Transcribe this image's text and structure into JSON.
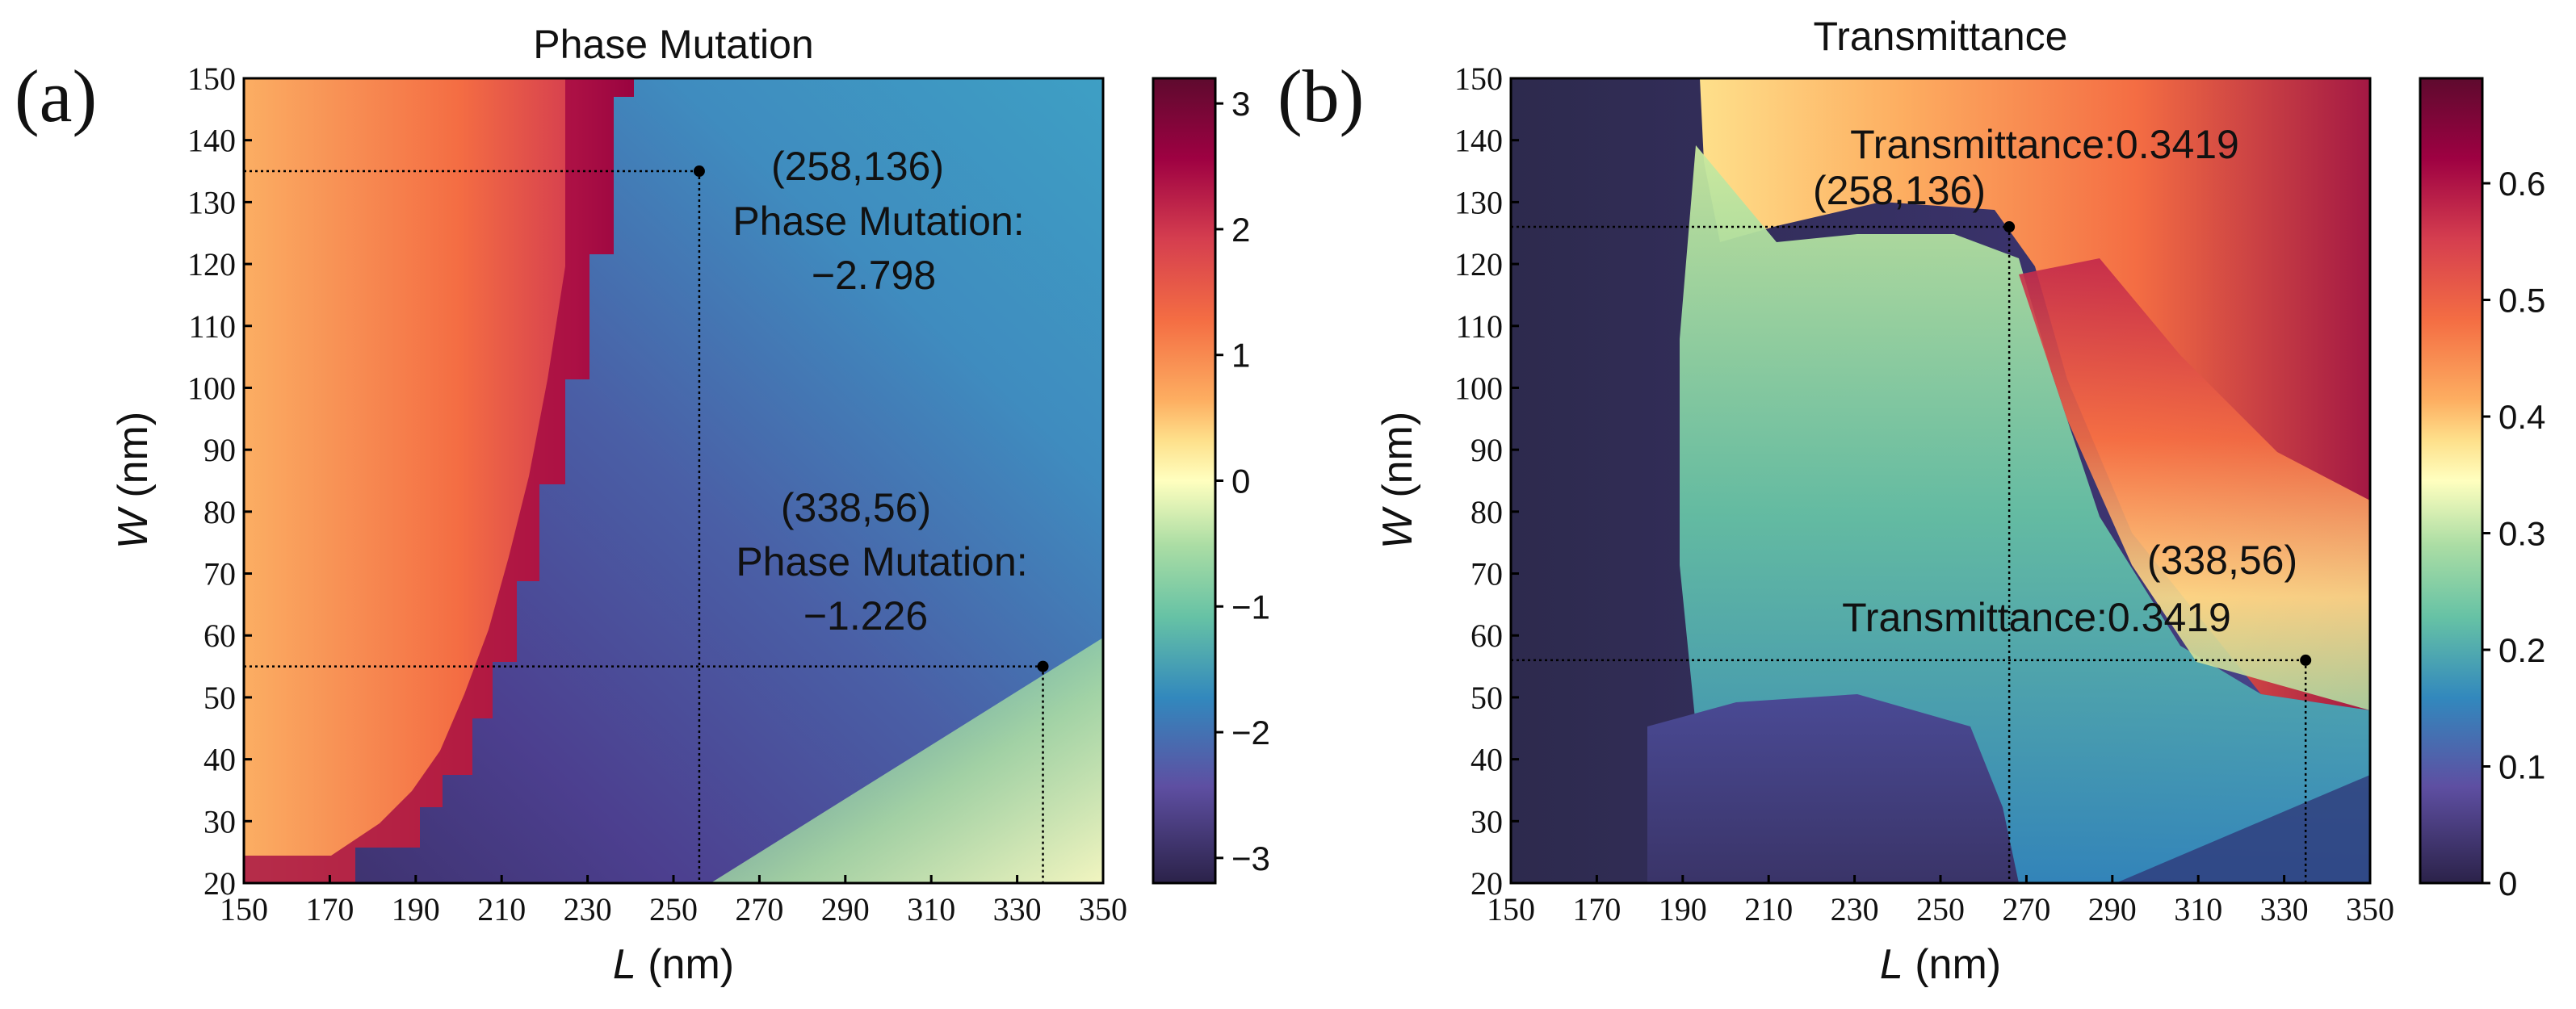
{
  "chart_data": [
    {
      "type": "heatmap",
      "panel_label": "(a)",
      "title": "Phase Mutation",
      "xlabel_var": "L",
      "xlabel_unit": " (nm)",
      "ylabel_var": "W",
      "ylabel_unit": " (nm)",
      "xlim": [
        150,
        350
      ],
      "ylim": [
        20,
        150
      ],
      "xticks": [
        "150",
        "170",
        "190",
        "210",
        "230",
        "250",
        "270",
        "290",
        "310",
        "330",
        "350"
      ],
      "yticks": [
        "20",
        "30",
        "40",
        "50",
        "60",
        "70",
        "80",
        "90",
        "100",
        "110",
        "120",
        "130",
        "140",
        "150"
      ],
      "colorbar": {
        "range": [
          -3.2,
          3.2
        ],
        "ticks": [
          "3",
          "2",
          "1",
          "0",
          "−1",
          "−2",
          "−3"
        ],
        "tick_values": [
          3,
          2,
          1,
          0,
          -1,
          -2,
          -3
        ]
      },
      "annotations": [
        {
          "point": [
            256,
            135
          ],
          "coord_text": "(258,136)",
          "label_text": "Phase Mutation:",
          "value_text": "−2.798"
        },
        {
          "point": [
            336,
            55
          ],
          "coord_text": "(338,56)",
          "label_text": "Phase Mutation:",
          "value_text": "−1.226"
        }
      ]
    },
    {
      "type": "heatmap",
      "panel_label": "(b)",
      "title": "Transmittance",
      "xlabel_var": "L",
      "xlabel_unit": " (nm)",
      "ylabel_var": "W",
      "ylabel_unit": " (nm)",
      "xlim": [
        150,
        350
      ],
      "ylim": [
        20,
        150
      ],
      "xticks": [
        "150",
        "170",
        "190",
        "210",
        "230",
        "250",
        "270",
        "290",
        "310",
        "330",
        "350"
      ],
      "yticks": [
        "20",
        "30",
        "40",
        "50",
        "60",
        "70",
        "80",
        "90",
        "100",
        "110",
        "120",
        "130",
        "140",
        "150"
      ],
      "colorbar": {
        "range": [
          0,
          0.69
        ],
        "ticks": [
          "0.6",
          "0.5",
          "0.4",
          "0.3",
          "0.2",
          "0.1",
          "0"
        ],
        "tick_values": [
          0.6,
          0.5,
          0.4,
          0.3,
          0.2,
          0.1,
          0
        ]
      },
      "annotations": [
        {
          "point": [
            266,
            126
          ],
          "coord_text": "(258,136)",
          "label_text": "Transmittance:0.3419"
        },
        {
          "point": [
            335,
            56
          ],
          "coord_text": "(338,56)",
          "label_text": "Transmittance:0.3419"
        }
      ]
    }
  ]
}
